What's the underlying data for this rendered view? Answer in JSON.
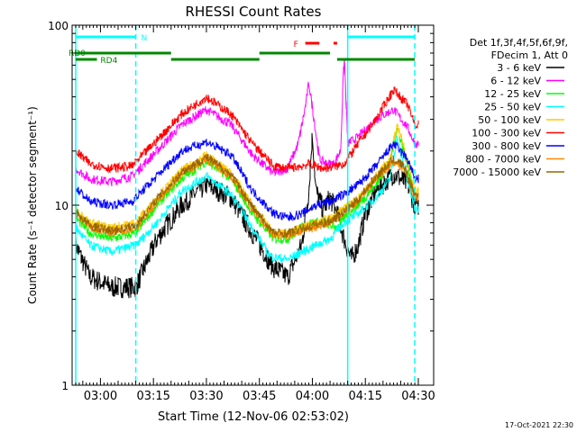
{
  "chart_data": {
    "type": "line",
    "title": "RHESSI Count Rates",
    "xlabel": "Start Time (12-Nov-06 02:53:02)",
    "ylabel": "Count Rate (s⁻¹ detector segment⁻¹)",
    "y_scale": "log",
    "ylim": [
      1,
      100
    ],
    "y_ticks": [
      {
        "label": "1",
        "value": 1
      },
      {
        "label": "10",
        "value": 10
      },
      {
        "label": "100",
        "value": 100
      }
    ],
    "xlim_min": [
      0,
      97
    ],
    "x_ticks": [
      {
        "label": "03:00",
        "min": 7
      },
      {
        "label": "03:15",
        "min": 22
      },
      {
        "label": "03:30",
        "min": 37
      },
      {
        "label": "03:45",
        "min": 52
      },
      {
        "label": "04:00",
        "min": 67
      },
      {
        "label": "04:15",
        "min": 82
      },
      {
        "label": "04:30",
        "min": 97
      }
    ],
    "grid": false,
    "legend_position": "right",
    "legend_header": [
      "Det 1f,3f,4f,5f,6f,9f,",
      "FDecim 1, Att 0"
    ],
    "series": [
      {
        "name": "3 - 6 keV",
        "color": "#000000",
        "pts": [
          [
            0,
            6
          ],
          [
            4,
            4
          ],
          [
            10,
            3.5
          ],
          [
            17,
            3.5
          ],
          [
            23,
            6.5
          ],
          [
            30,
            10
          ],
          [
            37,
            13
          ],
          [
            44,
            11
          ],
          [
            50,
            7
          ],
          [
            56,
            4.5
          ],
          [
            60,
            4
          ],
          [
            64,
            6
          ],
          [
            66,
            12
          ],
          [
            67,
            25
          ],
          [
            68,
            12
          ],
          [
            70,
            9.5
          ],
          [
            72,
            11
          ],
          [
            74,
            9
          ],
          [
            76,
            6.5
          ],
          [
            78,
            5
          ],
          [
            80,
            6
          ],
          [
            82,
            9
          ],
          [
            85,
            12
          ],
          [
            90,
            15
          ],
          [
            94,
            13
          ],
          [
            96,
            10
          ]
        ]
      },
      {
        "name": "6 - 12 keV",
        "color": "#ff00ff",
        "pts": [
          [
            0,
            16
          ],
          [
            4,
            14
          ],
          [
            10,
            13.5
          ],
          [
            16,
            14.5
          ],
          [
            23,
            20
          ],
          [
            30,
            28
          ],
          [
            37,
            34
          ],
          [
            44,
            28
          ],
          [
            50,
            19
          ],
          [
            56,
            15
          ],
          [
            60,
            16
          ],
          [
            63,
            22
          ],
          [
            65,
            35
          ],
          [
            66,
            48
          ],
          [
            67,
            35
          ],
          [
            69,
            18
          ],
          [
            71,
            17
          ],
          [
            73,
            17
          ],
          [
            75,
            20
          ],
          [
            76,
            70
          ],
          [
            77,
            22
          ],
          [
            80,
            24
          ],
          [
            85,
            30
          ],
          [
            90,
            34
          ],
          [
            94,
            27
          ],
          [
            96,
            22
          ]
        ]
      },
      {
        "name": "12 - 25 keV",
        "color": "#00ff00",
        "pts": [
          [
            0,
            8.5
          ],
          [
            4,
            7
          ],
          [
            10,
            6.5
          ],
          [
            17,
            7
          ],
          [
            23,
            10
          ],
          [
            30,
            14
          ],
          [
            37,
            17.5
          ],
          [
            44,
            14
          ],
          [
            50,
            9
          ],
          [
            56,
            6.5
          ],
          [
            60,
            6.5
          ],
          [
            64,
            7.5
          ],
          [
            66,
            8
          ],
          [
            70,
            8
          ],
          [
            74,
            7.5
          ],
          [
            77,
            9
          ],
          [
            80,
            10
          ],
          [
            85,
            13
          ],
          [
            89,
            17.5
          ],
          [
            91,
            27
          ],
          [
            93,
            20
          ],
          [
            96,
            11
          ]
        ]
      },
      {
        "name": "25 - 50 keV",
        "color": "#00ffff",
        "pts": [
          [
            0,
            7.5
          ],
          [
            4,
            6
          ],
          [
            10,
            5.5
          ],
          [
            17,
            6
          ],
          [
            23,
            8
          ],
          [
            30,
            12
          ],
          [
            37,
            14.5
          ],
          [
            44,
            11.5
          ],
          [
            50,
            7.5
          ],
          [
            55,
            5.2
          ],
          [
            60,
            5
          ],
          [
            64,
            5.5
          ],
          [
            68,
            6
          ],
          [
            72,
            6.5
          ],
          [
            76,
            8
          ],
          [
            80,
            9
          ],
          [
            85,
            11
          ],
          [
            89,
            14
          ],
          [
            91,
            24
          ],
          [
            93,
            16
          ],
          [
            96,
            9.5
          ]
        ]
      },
      {
        "name": "50 - 100 keV",
        "color": "#ffcc00",
        "pts": [
          [
            0,
            9.5
          ],
          [
            4,
            8
          ],
          [
            10,
            7.5
          ],
          [
            17,
            8
          ],
          [
            23,
            11
          ],
          [
            30,
            15.5
          ],
          [
            37,
            19
          ],
          [
            44,
            15
          ],
          [
            50,
            10
          ],
          [
            56,
            7
          ],
          [
            60,
            7
          ],
          [
            64,
            7.5
          ],
          [
            68,
            8
          ],
          [
            72,
            8.5
          ],
          [
            76,
            9.5
          ],
          [
            80,
            11
          ],
          [
            85,
            14.5
          ],
          [
            89,
            18
          ],
          [
            91,
            28
          ],
          [
            93,
            21
          ],
          [
            96,
            12
          ]
        ]
      },
      {
        "name": "100 - 300 keV",
        "color": "#ff0000",
        "pts": [
          [
            0,
            20
          ],
          [
            4,
            17
          ],
          [
            10,
            16
          ],
          [
            16,
            16.5
          ],
          [
            23,
            23
          ],
          [
            30,
            32
          ],
          [
            37,
            40
          ],
          [
            44,
            32
          ],
          [
            50,
            22
          ],
          [
            56,
            16.5
          ],
          [
            60,
            16
          ],
          [
            64,
            16.5
          ],
          [
            66,
            17
          ],
          [
            70,
            16
          ],
          [
            74,
            16.5
          ],
          [
            76,
            17
          ],
          [
            80,
            22
          ],
          [
            85,
            30
          ],
          [
            90,
            44
          ],
          [
            94,
            36
          ],
          [
            96,
            28
          ]
        ]
      },
      {
        "name": "300 - 800 keV",
        "color": "#0000ff",
        "pts": [
          [
            0,
            12.5
          ],
          [
            4,
            10.5
          ],
          [
            10,
            10
          ],
          [
            16,
            10.5
          ],
          [
            23,
            14.5
          ],
          [
            30,
            20
          ],
          [
            37,
            22.5
          ],
          [
            44,
            19
          ],
          [
            50,
            12
          ],
          [
            56,
            9
          ],
          [
            60,
            8.5
          ],
          [
            64,
            9
          ],
          [
            68,
            10
          ],
          [
            72,
            10.5
          ],
          [
            76,
            11.5
          ],
          [
            80,
            13
          ],
          [
            85,
            16.5
          ],
          [
            90,
            22
          ],
          [
            94,
            18
          ],
          [
            96,
            14
          ]
        ]
      },
      {
        "name": "800 - 7000 keV",
        "color": "#ff8800",
        "pts": [
          [
            0,
            9
          ],
          [
            4,
            7.5
          ],
          [
            10,
            7
          ],
          [
            17,
            7.5
          ],
          [
            23,
            10.5
          ],
          [
            30,
            15
          ],
          [
            37,
            18
          ],
          [
            44,
            14.5
          ],
          [
            50,
            9.5
          ],
          [
            56,
            6.8
          ],
          [
            60,
            6.8
          ],
          [
            64,
            7.2
          ],
          [
            68,
            7.6
          ],
          [
            72,
            8
          ],
          [
            76,
            9
          ],
          [
            80,
            10.5
          ],
          [
            85,
            14
          ],
          [
            90,
            17.5
          ],
          [
            93,
            16
          ],
          [
            96,
            11
          ]
        ]
      },
      {
        "name": "7000 - 15000 keV",
        "color": "#996600",
        "pts": [
          [
            0,
            9.2
          ],
          [
            4,
            7.7
          ],
          [
            10,
            7.2
          ],
          [
            17,
            7.7
          ],
          [
            23,
            10.8
          ],
          [
            30,
            15.3
          ],
          [
            37,
            18.5
          ],
          [
            44,
            14.8
          ],
          [
            50,
            9.8
          ],
          [
            56,
            7
          ],
          [
            60,
            7
          ],
          [
            64,
            7.4
          ],
          [
            68,
            7.8
          ],
          [
            72,
            8.2
          ],
          [
            76,
            9.2
          ],
          [
            80,
            10.8
          ],
          [
            85,
            14.4
          ],
          [
            90,
            18
          ],
          [
            93,
            16.5
          ],
          [
            96,
            11.5
          ]
        ]
      }
    ],
    "segments": [
      {
        "label": "N",
        "color": "#00ffff",
        "bars": [
          [
            0,
            17
          ]
        ]
      },
      {
        "label": "",
        "color": "#00ffff",
        "bars": [
          [
            77,
            96
          ]
        ]
      },
      {
        "label": "F",
        "color": "#ff0000",
        "bars": [
          [
            65,
            69
          ],
          [
            73,
            74
          ]
        ]
      },
      {
        "label": "RD0",
        "color": "#008800",
        "bars": [
          [
            0,
            27
          ],
          [
            52,
            72
          ]
        ]
      },
      {
        "label": "RD4",
        "color": "#008800",
        "bars": [
          [
            0,
            6
          ],
          [
            27,
            52
          ],
          [
            74,
            96
          ]
        ]
      }
    ],
    "vlines": [
      {
        "min": 0,
        "color": "#00ffff",
        "style": "solid"
      },
      {
        "min": 17,
        "color": "#00ffff",
        "style": "dashed"
      },
      {
        "min": 77,
        "color": "#00ffff",
        "style": "solid"
      },
      {
        "min": 96,
        "color": "#00ffff",
        "style": "dashed"
      }
    ],
    "footer_date": "17-Oct-2021 22:30"
  }
}
